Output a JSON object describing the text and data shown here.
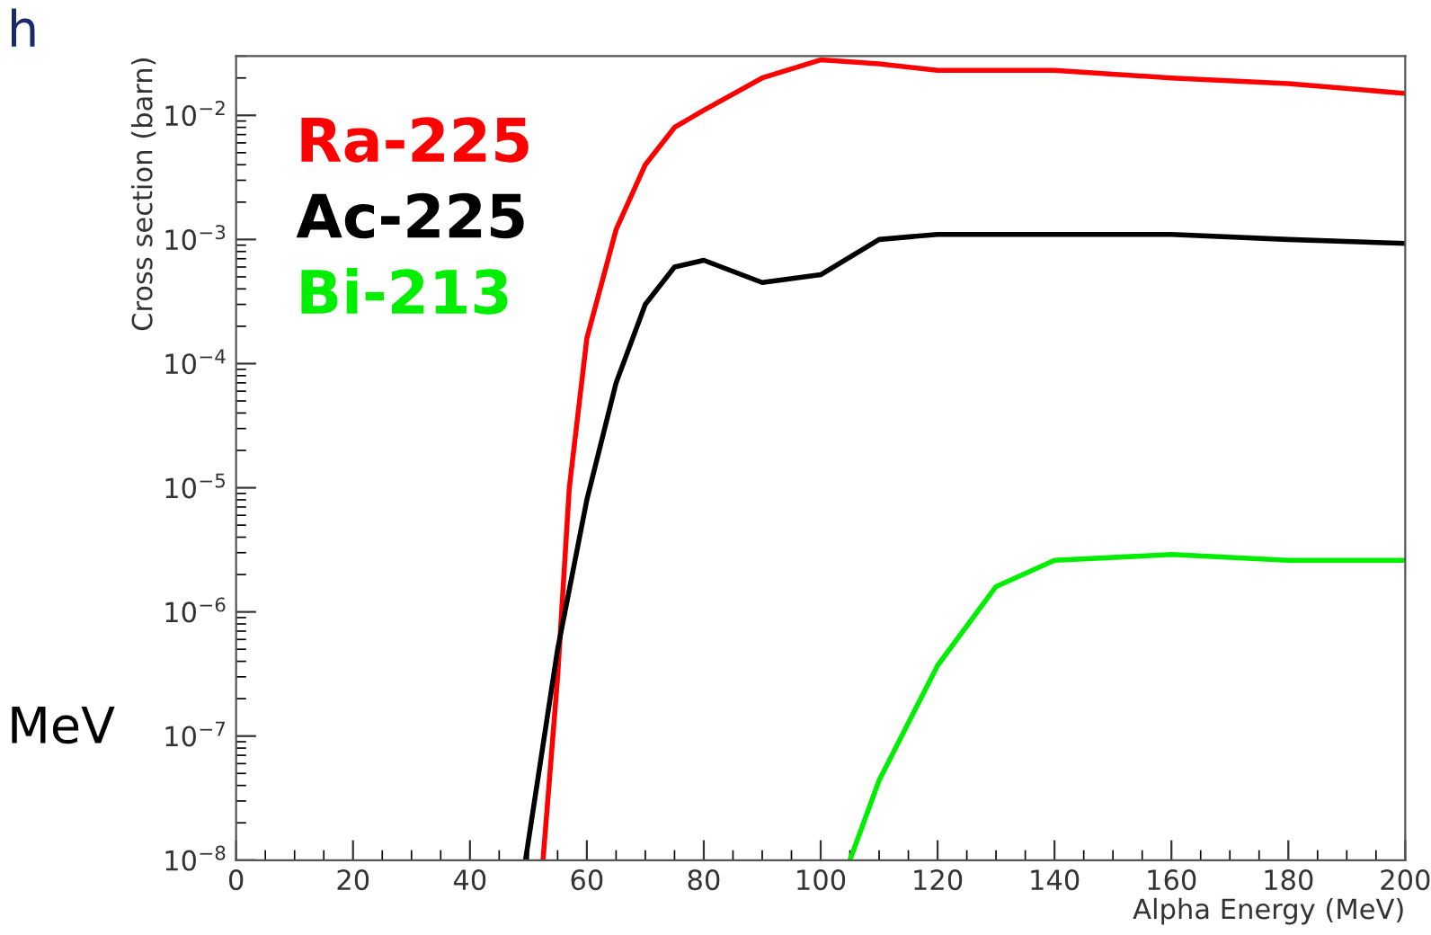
{
  "chart_data": {
    "type": "line",
    "xlabel": "Alpha Energy (MeV)",
    "ylabel": "Cross section (barn)",
    "log": "y",
    "xlim": [
      0,
      200
    ],
    "ylim": [
      1e-08,
      0.03
    ],
    "xticks": [
      0,
      20,
      40,
      60,
      80,
      100,
      120,
      140,
      160,
      180,
      200
    ],
    "yticks": [
      {
        "value": 1e-08,
        "label": "10$^{−8}$"
      },
      {
        "value": 1e-07,
        "label": "10$^{−7}$"
      },
      {
        "value": 1e-06,
        "label": "10$^{−6}$"
      },
      {
        "value": 1e-05,
        "label": "10$^{−5}$"
      },
      {
        "value": 0.0001,
        "label": "10$^{−4}$"
      },
      {
        "value": 0.001,
        "label": "10$^{−3}$"
      },
      {
        "value": 0.01,
        "label": "10$^{−2}$"
      }
    ],
    "grid": false,
    "legend": "top left",
    "marker": "none",
    "line_style": "solid",
    "annotations": [
      "h",
      "MeV"
    ],
    "series": [
      {
        "name": "Ra-225",
        "color": "#ff0000",
        "x": [
          52.5,
          55,
          57,
          60,
          65,
          70,
          75,
          80,
          90,
          100,
          110,
          120,
          140,
          160,
          180,
          200
        ],
        "values": [
          1e-08,
          3e-07,
          1e-05,
          0.00016,
          0.0012,
          0.004,
          0.008,
          0.011,
          0.02,
          0.028,
          0.026,
          0.023,
          0.023,
          0.02,
          0.018,
          0.015
        ]
      },
      {
        "name": "Ac-225",
        "color": "#000000",
        "x": [
          49.5,
          55,
          60,
          65,
          70,
          75,
          80,
          90,
          100,
          110,
          120,
          160,
          180,
          200
        ],
        "values": [
          1e-08,
          5e-07,
          8e-06,
          7e-05,
          0.0003,
          0.0006,
          0.00068,
          0.00045,
          0.00052,
          0.001,
          0.0011,
          0.0011,
          0.001,
          0.00093
        ]
      },
      {
        "name": "Bi-213",
        "color": "#00ee00",
        "x": [
          105,
          110,
          120,
          130,
          140,
          160,
          180,
          200
        ],
        "values": [
          1e-08,
          4.4e-08,
          3.7e-07,
          1.6e-06,
          2.6e-06,
          2.9e-06,
          2.6e-06,
          2.6e-06
        ]
      }
    ]
  }
}
